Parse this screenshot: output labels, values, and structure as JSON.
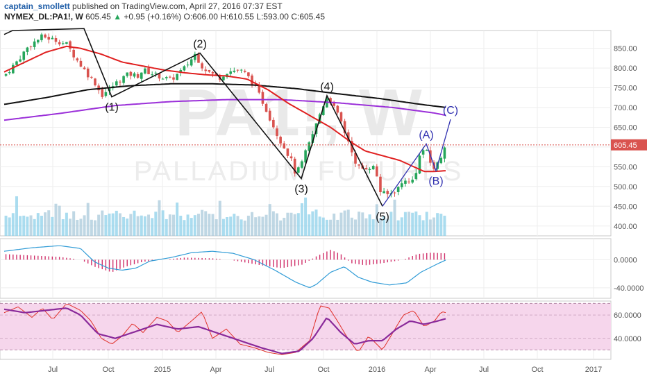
{
  "header": {
    "author": "captain_smollett",
    "published_text": "published on TradingView.com, April 27, 2016 07:37 EST",
    "symbol": "NYMEX_DL:PA1!, W",
    "last": "605.45",
    "change_arrow": "▲",
    "change": "+0.95 (+0.16%)",
    "open": "O:606.00",
    "high": "H:610.55",
    "low": "L:593.00",
    "close": "C:605.45"
  },
  "watermark": {
    "big": "PA1!, W",
    "sub": "PALLADIUM FUTURES"
  },
  "price_badge": "605.45",
  "colors": {
    "up": "#26a65b",
    "down": "#d9534f",
    "ma_fast": "#e02020",
    "ma_mid": "#111111",
    "ma_slow": "#9b30d9",
    "volume": "#8ed0ea",
    "macd_line": "#2f9bd6",
    "macd_hist": "#d0306a",
    "rsi_fast": "#e0302a",
    "rsi_slow": "#8a2a9a",
    "rsi_band": "#f6d6ec",
    "wave_black": "#111111",
    "wave_blue": "#3030b0"
  },
  "chart_data": [
    {
      "type": "candlestick",
      "interval": "weekly",
      "ylim": [
        375,
        895
      ],
      "y_ticks": [
        "850.00",
        "800.00",
        "750.00",
        "700.00",
        "650.00",
        "600.00",
        "550.00",
        "500.00",
        "450.00",
        "400.00"
      ],
      "x_ticks": [
        "Jul",
        "Oct",
        "2015",
        "Apr",
        "Jul",
        "Oct",
        "2016",
        "Apr",
        "Jul",
        "Oct",
        "2017"
      ],
      "last_price": 605.45,
      "close_path": [
        [
          0,
          780
        ],
        [
          20,
          820
        ],
        [
          35,
          855
        ],
        [
          55,
          880
        ],
        [
          75,
          870
        ],
        [
          90,
          860
        ],
        [
          105,
          820
        ],
        [
          120,
          785
        ],
        [
          132,
          760
        ],
        [
          140,
          730
        ],
        [
          150,
          745
        ],
        [
          160,
          760
        ],
        [
          170,
          775
        ],
        [
          180,
          785
        ],
        [
          192,
          780
        ],
        [
          200,
          795
        ],
        [
          215,
          785
        ],
        [
          230,
          775
        ],
        [
          240,
          770
        ],
        [
          260,
          800
        ],
        [
          275,
          835
        ],
        [
          285,
          805
        ],
        [
          295,
          790
        ],
        [
          310,
          775
        ],
        [
          320,
          790
        ],
        [
          335,
          795
        ],
        [
          345,
          790
        ],
        [
          355,
          770
        ],
        [
          365,
          740
        ],
        [
          375,
          705
        ],
        [
          385,
          665
        ],
        [
          395,
          625
        ],
        [
          405,
          595
        ],
        [
          415,
          560
        ],
        [
          420,
          530
        ],
        [
          428,
          555
        ],
        [
          435,
          590
        ],
        [
          442,
          620
        ],
        [
          450,
          660
        ],
        [
          458,
          700
        ],
        [
          466,
          730
        ],
        [
          475,
          700
        ],
        [
          485,
          665
        ],
        [
          492,
          630
        ],
        [
          500,
          600
        ],
        [
          505,
          555
        ],
        [
          515,
          545
        ],
        [
          525,
          550
        ],
        [
          535,
          548
        ],
        [
          540,
          490
        ],
        [
          550,
          478
        ],
        [
          560,
          485
        ],
        [
          570,
          500
        ],
        [
          578,
          520
        ],
        [
          585,
          505
        ],
        [
          592,
          530
        ],
        [
          598,
          575
        ],
        [
          606,
          600
        ],
        [
          614,
          560
        ],
        [
          620,
          545
        ],
        [
          628,
          568
        ],
        [
          634,
          605.45
        ]
      ],
      "ma_fast_path": [
        [
          0,
          790
        ],
        [
          30,
          815
        ],
        [
          60,
          840
        ],
        [
          90,
          855
        ],
        [
          110,
          850
        ],
        [
          140,
          835
        ],
        [
          170,
          815
        ],
        [
          200,
          805
        ],
        [
          230,
          795
        ],
        [
          260,
          788
        ],
        [
          290,
          783
        ],
        [
          320,
          780
        ],
        [
          350,
          772
        ],
        [
          380,
          745
        ],
        [
          410,
          710
        ],
        [
          440,
          680
        ],
        [
          470,
          650
        ],
        [
          500,
          612
        ],
        [
          520,
          590
        ],
        [
          545,
          578
        ],
        [
          570,
          566
        ],
        [
          590,
          550
        ],
        [
          605,
          538
        ],
        [
          620,
          538
        ],
        [
          637,
          540
        ]
      ],
      "ma_mid_path": [
        [
          0,
          708
        ],
        [
          60,
          725
        ],
        [
          120,
          745
        ],
        [
          180,
          755
        ],
        [
          240,
          760
        ],
        [
          300,
          760
        ],
        [
          360,
          757
        ],
        [
          420,
          748
        ],
        [
          480,
          735
        ],
        [
          540,
          723
        ],
        [
          600,
          708
        ],
        [
          637,
          700
        ]
      ],
      "ma_slow_path": [
        [
          0,
          668
        ],
        [
          80,
          685
        ],
        [
          160,
          705
        ],
        [
          240,
          715
        ],
        [
          320,
          720
        ],
        [
          400,
          720
        ],
        [
          480,
          712
        ],
        [
          560,
          700
        ],
        [
          620,
          686
        ],
        [
          637,
          680
        ]
      ],
      "waves_black": [
        {
          "label": "(1)",
          "x": 155,
          "y": 727
        },
        {
          "label": "(2)",
          "x": 282,
          "y": 838
        },
        {
          "label": "(3)",
          "x": 428,
          "y": 520
        },
        {
          "label": "(4)",
          "x": 465,
          "y": 730
        },
        {
          "label": "(5)",
          "x": 545,
          "y": 450
        }
      ],
      "waves_black_line": [
        [
          0,
          885
        ],
        [
          12,
          895
        ],
        [
          115,
          900
        ],
        [
          155,
          727
        ],
        [
          282,
          838
        ],
        [
          428,
          520
        ],
        [
          465,
          730
        ],
        [
          545,
          450
        ]
      ],
      "waves_blue": [
        {
          "label": "(A)",
          "x": 608,
          "y": 608
        },
        {
          "label": "(B)",
          "x": 622,
          "y": 540
        },
        {
          "label": "(C)",
          "x": 643,
          "y": 670
        }
      ],
      "waves_blue_line": [
        [
          545,
          450
        ],
        [
          608,
          608
        ],
        [
          622,
          540
        ],
        [
          643,
          670
        ]
      ]
    },
    {
      "type": "bar",
      "name": "volume",
      "note": "relative heights"
    },
    {
      "type": "line",
      "name": "MACD",
      "ylim": [
        -55,
        30
      ],
      "y_ticks": [
        "0.0000",
        "-40.0000"
      ],
      "line_path": [
        [
          0,
          12
        ],
        [
          40,
          17
        ],
        [
          80,
          20
        ],
        [
          110,
          16
        ],
        [
          130,
          -3
        ],
        [
          150,
          -12
        ],
        [
          170,
          -15
        ],
        [
          190,
          -12
        ],
        [
          210,
          -2
        ],
        [
          240,
          3
        ],
        [
          270,
          10
        ],
        [
          300,
          12
        ],
        [
          330,
          9
        ],
        [
          360,
          0
        ],
        [
          390,
          -15
        ],
        [
          420,
          -32
        ],
        [
          440,
          -40
        ],
        [
          450,
          -35
        ],
        [
          470,
          -18
        ],
        [
          490,
          -10
        ],
        [
          510,
          -25
        ],
        [
          530,
          -32
        ],
        [
          555,
          -36
        ],
        [
          580,
          -33
        ],
        [
          600,
          -18
        ],
        [
          620,
          -8
        ],
        [
          637,
          0
        ]
      ],
      "hist_path": [
        [
          0,
          8
        ],
        [
          80,
          4
        ],
        [
          110,
          0
        ],
        [
          130,
          -10
        ],
        [
          155,
          -18
        ],
        [
          175,
          -10
        ],
        [
          200,
          -3
        ],
        [
          230,
          0
        ],
        [
          260,
          3
        ],
        [
          300,
          2
        ],
        [
          330,
          -1
        ],
        [
          370,
          -8
        ],
        [
          400,
          -12
        ],
        [
          430,
          -7
        ],
        [
          450,
          5
        ],
        [
          470,
          14
        ],
        [
          485,
          8
        ],
        [
          500,
          -5
        ],
        [
          520,
          -8
        ],
        [
          545,
          -5
        ],
        [
          575,
          0
        ],
        [
          595,
          8
        ],
        [
          615,
          10
        ],
        [
          637,
          9
        ]
      ]
    },
    {
      "type": "line",
      "name": "RSI",
      "ylim": [
        22,
        72
      ],
      "y_ticks": [
        "60.0000",
        "40.0000"
      ],
      "bands": [
        30,
        70
      ],
      "fast_path": [
        [
          0,
          62
        ],
        [
          20,
          67
        ],
        [
          40,
          58
        ],
        [
          55,
          66
        ],
        [
          70,
          56
        ],
        [
          90,
          70
        ],
        [
          110,
          64
        ],
        [
          125,
          55
        ],
        [
          140,
          40
        ],
        [
          155,
          35
        ],
        [
          170,
          42
        ],
        [
          185,
          53
        ],
        [
          200,
          45
        ],
        [
          220,
          58
        ],
        [
          235,
          55
        ],
        [
          250,
          45
        ],
        [
          270,
          55
        ],
        [
          285,
          63
        ],
        [
          300,
          40
        ],
        [
          320,
          48
        ],
        [
          340,
          35
        ],
        [
          360,
          32
        ],
        [
          380,
          28
        ],
        [
          400,
          26
        ],
        [
          420,
          28
        ],
        [
          440,
          38
        ],
        [
          455,
          68
        ],
        [
          468,
          66
        ],
        [
          480,
          55
        ],
        [
          495,
          40
        ],
        [
          510,
          28
        ],
        [
          525,
          42
        ],
        [
          545,
          30
        ],
        [
          560,
          45
        ],
        [
          575,
          60
        ],
        [
          590,
          64
        ],
        [
          605,
          50
        ],
        [
          620,
          55
        ],
        [
          630,
          63
        ],
        [
          637,
          62
        ]
      ],
      "slow_path": [
        [
          0,
          65
        ],
        [
          30,
          62
        ],
        [
          60,
          64
        ],
        [
          90,
          66
        ],
        [
          110,
          60
        ],
        [
          135,
          44
        ],
        [
          160,
          40
        ],
        [
          190,
          46
        ],
        [
          220,
          52
        ],
        [
          250,
          48
        ],
        [
          280,
          50
        ],
        [
          310,
          44
        ],
        [
          340,
          38
        ],
        [
          370,
          32
        ],
        [
          400,
          27
        ],
        [
          425,
          29
        ],
        [
          445,
          40
        ],
        [
          465,
          58
        ],
        [
          485,
          45
        ],
        [
          505,
          35
        ],
        [
          525,
          38
        ],
        [
          545,
          38
        ],
        [
          565,
          48
        ],
        [
          585,
          55
        ],
        [
          605,
          52
        ],
        [
          625,
          55
        ],
        [
          637,
          57
        ]
      ]
    }
  ]
}
